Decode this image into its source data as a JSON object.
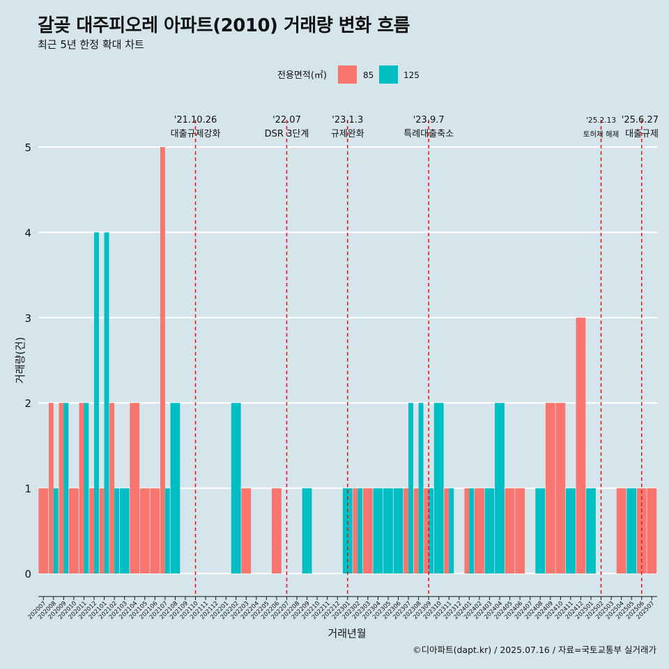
{
  "chart_data": {
    "type": "bar",
    "title": "갈곶 대주피오레 아파트(2010) 거래량 변화 흐름",
    "subtitle": "최근 5년 한정 확대 차트",
    "xlabel": "거래년월",
    "ylabel": "거래량(건)",
    "ylim": [
      0,
      5.2
    ],
    "yticks": [
      "0",
      "1",
      "2",
      "3",
      "4",
      "5"
    ],
    "legend": {
      "title": "전용면적(㎡)",
      "position": "top",
      "entries": [
        "85",
        "125"
      ]
    },
    "colors": {
      "85": "#f8766d",
      "125": "#00bfc4",
      "event_line": "#e3101a"
    },
    "categories": [
      "202007",
      "202008",
      "202009",
      "202010",
      "202011",
      "202012",
      "202101",
      "202102",
      "202103",
      "202104",
      "202105",
      "202106",
      "202107",
      "202108",
      "202109",
      "202110",
      "202111",
      "202112",
      "202201",
      "202202",
      "202203",
      "202204",
      "202205",
      "202206",
      "202207",
      "202208",
      "202209",
      "202210",
      "202211",
      "202212",
      "202301",
      "202302",
      "202303",
      "202304",
      "202305",
      "202306",
      "202307",
      "202308",
      "202309",
      "202310",
      "202311",
      "202312",
      "202401",
      "202402",
      "202403",
      "202404",
      "202405",
      "202406",
      "202407",
      "202408",
      "202409",
      "202410",
      "202411",
      "202412",
      "202501",
      "202502",
      "202503",
      "202504",
      "202505",
      "202506",
      "202507"
    ],
    "series": [
      {
        "name": "85",
        "values": [
          1,
          2,
          2,
          1,
          2,
          1,
          1,
          2,
          0,
          2,
          1,
          1,
          5,
          0,
          0,
          0,
          0,
          0,
          0,
          0,
          1,
          0,
          0,
          1,
          0,
          0,
          0,
          0,
          0,
          0,
          0,
          1,
          1,
          0,
          0,
          0,
          1,
          1,
          1,
          0,
          1,
          0,
          1,
          1,
          0,
          0,
          1,
          1,
          0,
          0,
          2,
          2,
          0,
          3,
          0,
          0,
          0,
          1,
          0,
          1,
          1
        ]
      },
      {
        "name": "125",
        "values": [
          0,
          1,
          2,
          0,
          2,
          4,
          4,
          1,
          1,
          0,
          0,
          0,
          1,
          2,
          0,
          0,
          0,
          0,
          0,
          2,
          0,
          0,
          0,
          0,
          0,
          0,
          1,
          0,
          0,
          0,
          1,
          1,
          0,
          1,
          1,
          1,
          2,
          2,
          1,
          2,
          1,
          0,
          1,
          0,
          1,
          2,
          0,
          0,
          0,
          1,
          0,
          0,
          1,
          0,
          1,
          0,
          0,
          0,
          1,
          0,
          0
        ]
      }
    ],
    "events": [
      {
        "date": "'21.10.26",
        "label": "대출규제강화",
        "month": "202110"
      },
      {
        "date": "'22.07",
        "label": "DSR 3단계",
        "month": "202207"
      },
      {
        "date": "'23.1.3",
        "label": "규제완화",
        "month": "202301"
      },
      {
        "date": "'23.9.7",
        "label": "특례대출축소",
        "month": "202309"
      },
      {
        "date": "'25.2.13",
        "label": "토허제 해제",
        "month": "202502"
      },
      {
        "date": "'25.6.27",
        "label": "대출규제",
        "month": "202506"
      }
    ]
  },
  "caption": "©디아파트(dapt.kr) / 2025.07.16 / 자료=국토교통부 실거래가"
}
